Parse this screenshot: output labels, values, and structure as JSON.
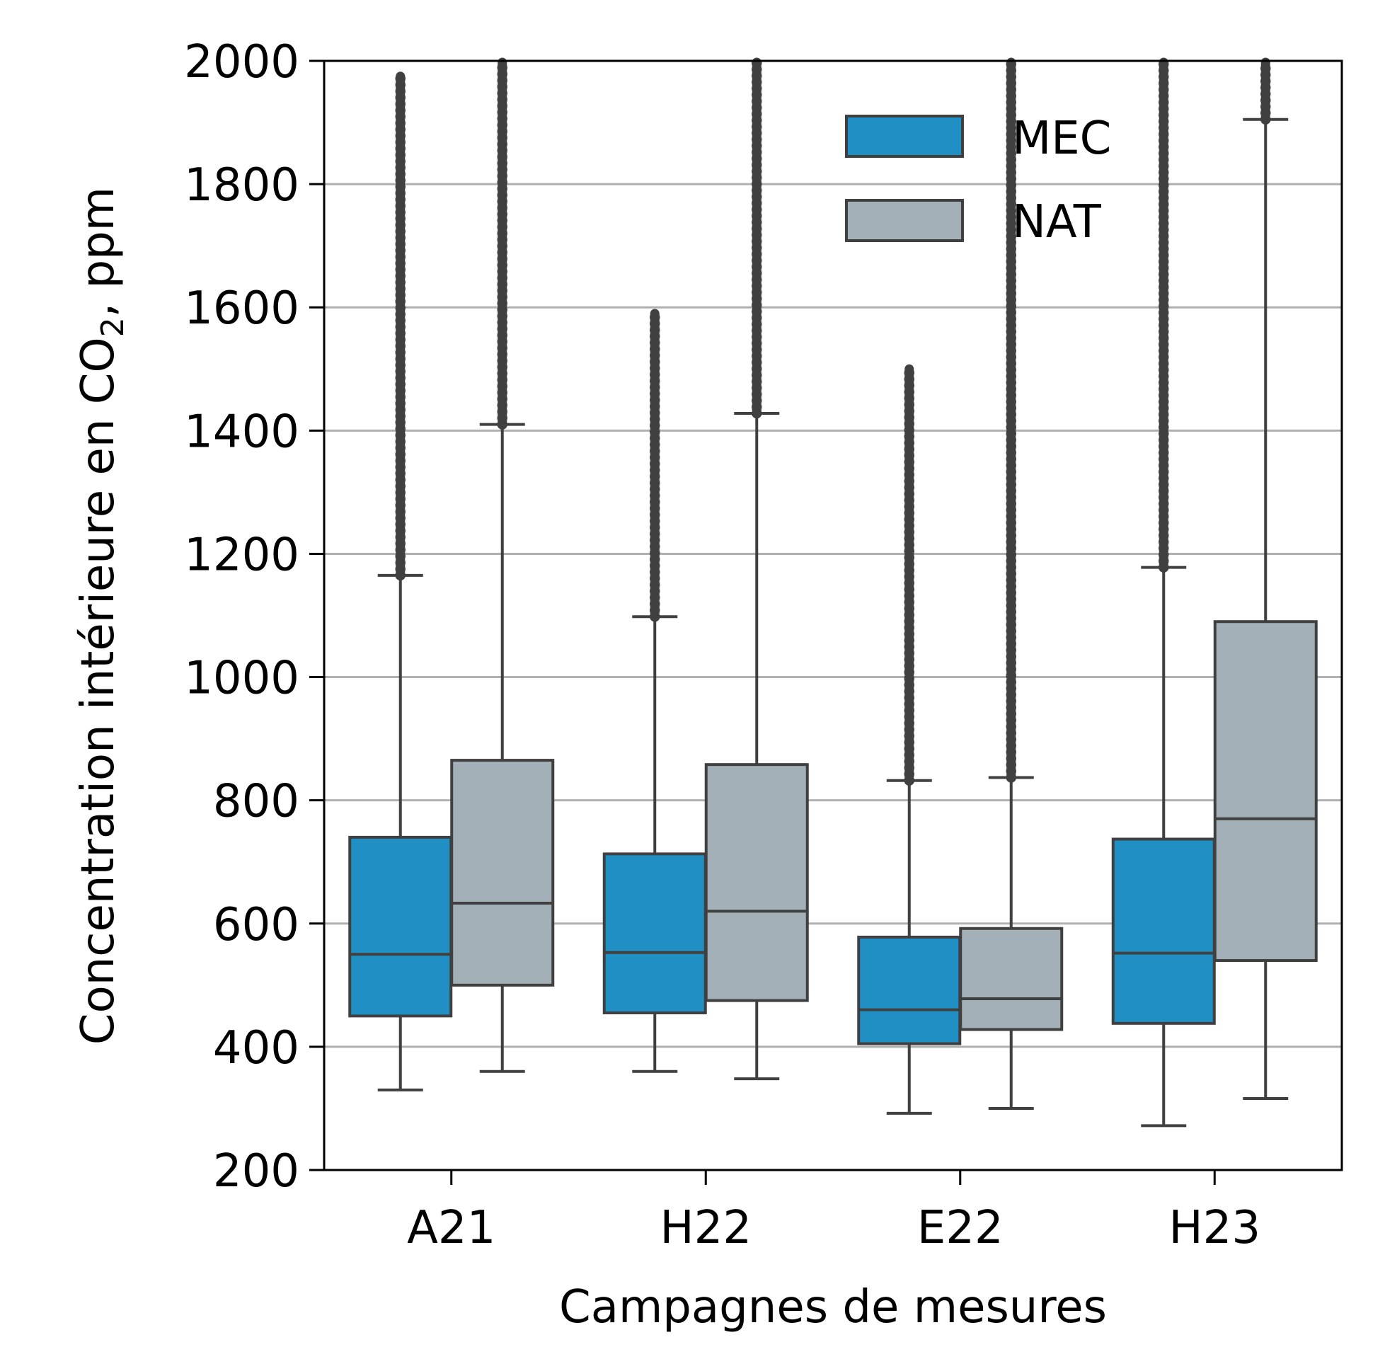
{
  "chart_data": {
    "type": "boxplot",
    "xlabel": "Campagnes de mesures",
    "ylabel_main": "Concentration intérieure en CO",
    "ylabel_sub": "2",
    "ylabel_tail": ", ppm",
    "ylim": [
      200,
      2000
    ],
    "yticks": [
      "200",
      "400",
      "600",
      "800",
      "1000",
      "1200",
      "1400",
      "1600",
      "1800",
      "2000"
    ],
    "ytick_values": [
      200,
      400,
      600,
      800,
      1000,
      1200,
      1400,
      1600,
      1800,
      2000
    ],
    "grid": "horizontal",
    "legend_placement": "top-right",
    "categories": [
      "A21",
      "H22",
      "E22",
      "H23"
    ],
    "series": [
      {
        "name": "MEC",
        "color": "#1f8fc4",
        "boxes": [
          {
            "whislo": 330,
            "q1": 450,
            "med": 550,
            "q3": 740,
            "whishi": 1165,
            "outlier_range": [
              1165,
              1975
            ]
          },
          {
            "whislo": 360,
            "q1": 455,
            "med": 553,
            "q3": 713,
            "whishi": 1098,
            "outlier_range": [
              1098,
              1590
            ]
          },
          {
            "whislo": 292,
            "q1": 405,
            "med": 460,
            "q3": 578,
            "whishi": 832,
            "outlier_range": [
              832,
              1500
            ]
          },
          {
            "whislo": 272,
            "q1": 438,
            "med": 552,
            "q3": 737,
            "whishi": 1178,
            "outlier_range": [
              1178,
              2000
            ]
          }
        ]
      },
      {
        "name": "NAT",
        "color": "#a3b0b8",
        "boxes": [
          {
            "whislo": 360,
            "q1": 500,
            "med": 633,
            "q3": 865,
            "whishi": 1410,
            "outlier_range": [
              1410,
              2000
            ]
          },
          {
            "whislo": 348,
            "q1": 475,
            "med": 620,
            "q3": 858,
            "whishi": 1428,
            "outlier_range": [
              1428,
              2000
            ]
          },
          {
            "whislo": 300,
            "q1": 428,
            "med": 478,
            "q3": 592,
            "whishi": 837,
            "outlier_range": [
              837,
              2000
            ]
          },
          {
            "whislo": 316,
            "q1": 540,
            "med": 770,
            "q3": 1090,
            "whishi": 1905,
            "outlier_range": [
              1905,
              2000
            ]
          }
        ]
      }
    ],
    "edge_color": "#404040",
    "grid_color": "#b0b0b0"
  }
}
